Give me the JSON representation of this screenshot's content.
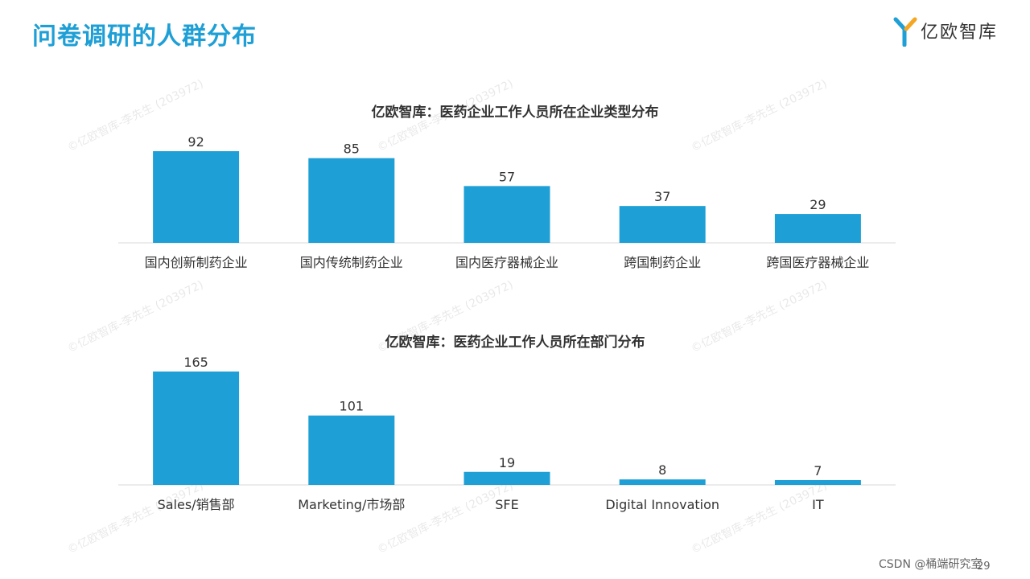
{
  "header": {
    "title": "问卷调研的人群分布",
    "logo_text": "亿欧智库"
  },
  "watermark_text": "©亿欧智库-李先生 (203972)",
  "footer": {
    "credit": "CSDN @桶端研究室",
    "page_number": "29"
  },
  "colors": {
    "accent": "#1e9fd6",
    "bar": "#1e9fd6",
    "axis": "#d9d9d9"
  },
  "chart_data": [
    {
      "type": "bar",
      "title": "亿欧智库：医药企业工作人员所在企业类型分布",
      "categories": [
        "国内创新制药企业",
        "国内传统制药企业",
        "国内医疗器械企业",
        "跨国制药企业",
        "跨国医疗器械企业"
      ],
      "values": [
        92,
        85,
        57,
        37,
        29
      ],
      "xlabel": "",
      "ylabel": "",
      "ylim": [
        0,
        92
      ],
      "grid": false
    },
    {
      "type": "bar",
      "title": "亿欧智库：医药企业工作人员所在部门分布",
      "categories": [
        "Sales/销售部",
        "Marketing/市场部",
        "SFE",
        "Digital Innovation",
        "IT"
      ],
      "values": [
        165,
        101,
        19,
        8,
        7
      ],
      "xlabel": "",
      "ylabel": "",
      "ylim": [
        0,
        165
      ],
      "grid": false
    }
  ]
}
